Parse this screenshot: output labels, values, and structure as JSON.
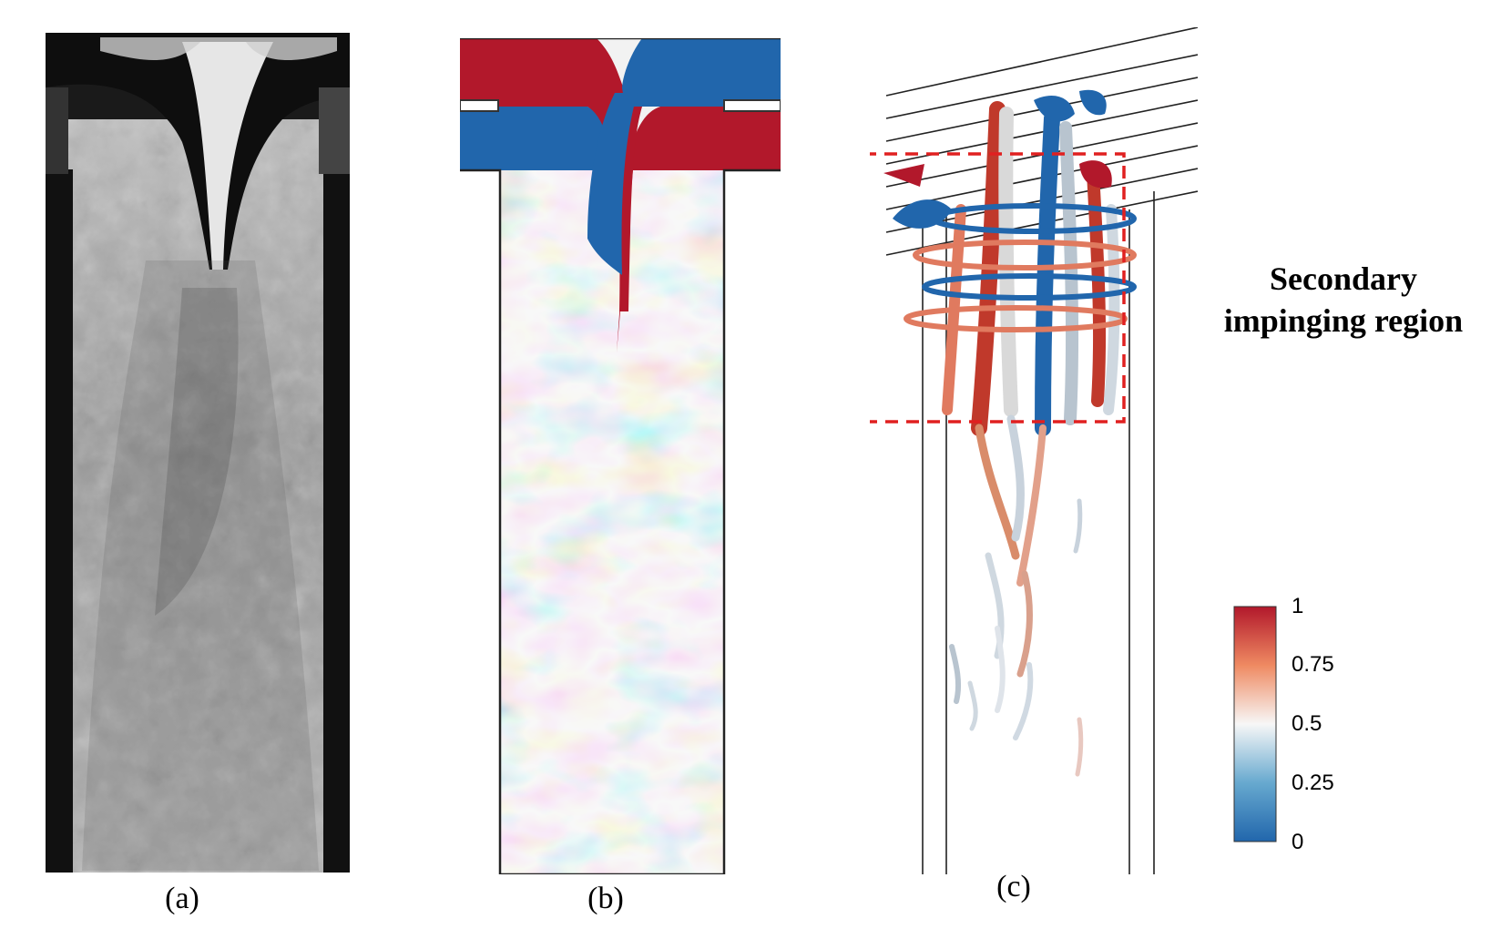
{
  "panels": [
    {
      "id": "a",
      "caption": "(a)"
    },
    {
      "id": "b",
      "caption": "(b)"
    },
    {
      "id": "c",
      "caption": "(c)"
    }
  ],
  "annotation": {
    "line1": "Secondary",
    "line2": "impinging region",
    "box_color": "#e02020"
  },
  "colorbar": {
    "ticks": [
      "1",
      "0.75",
      "0.5",
      "0.25",
      "0"
    ],
    "colors": {
      "high": "#b2182b",
      "mid": "#f7f7f7",
      "low": "#2166ac"
    }
  }
}
